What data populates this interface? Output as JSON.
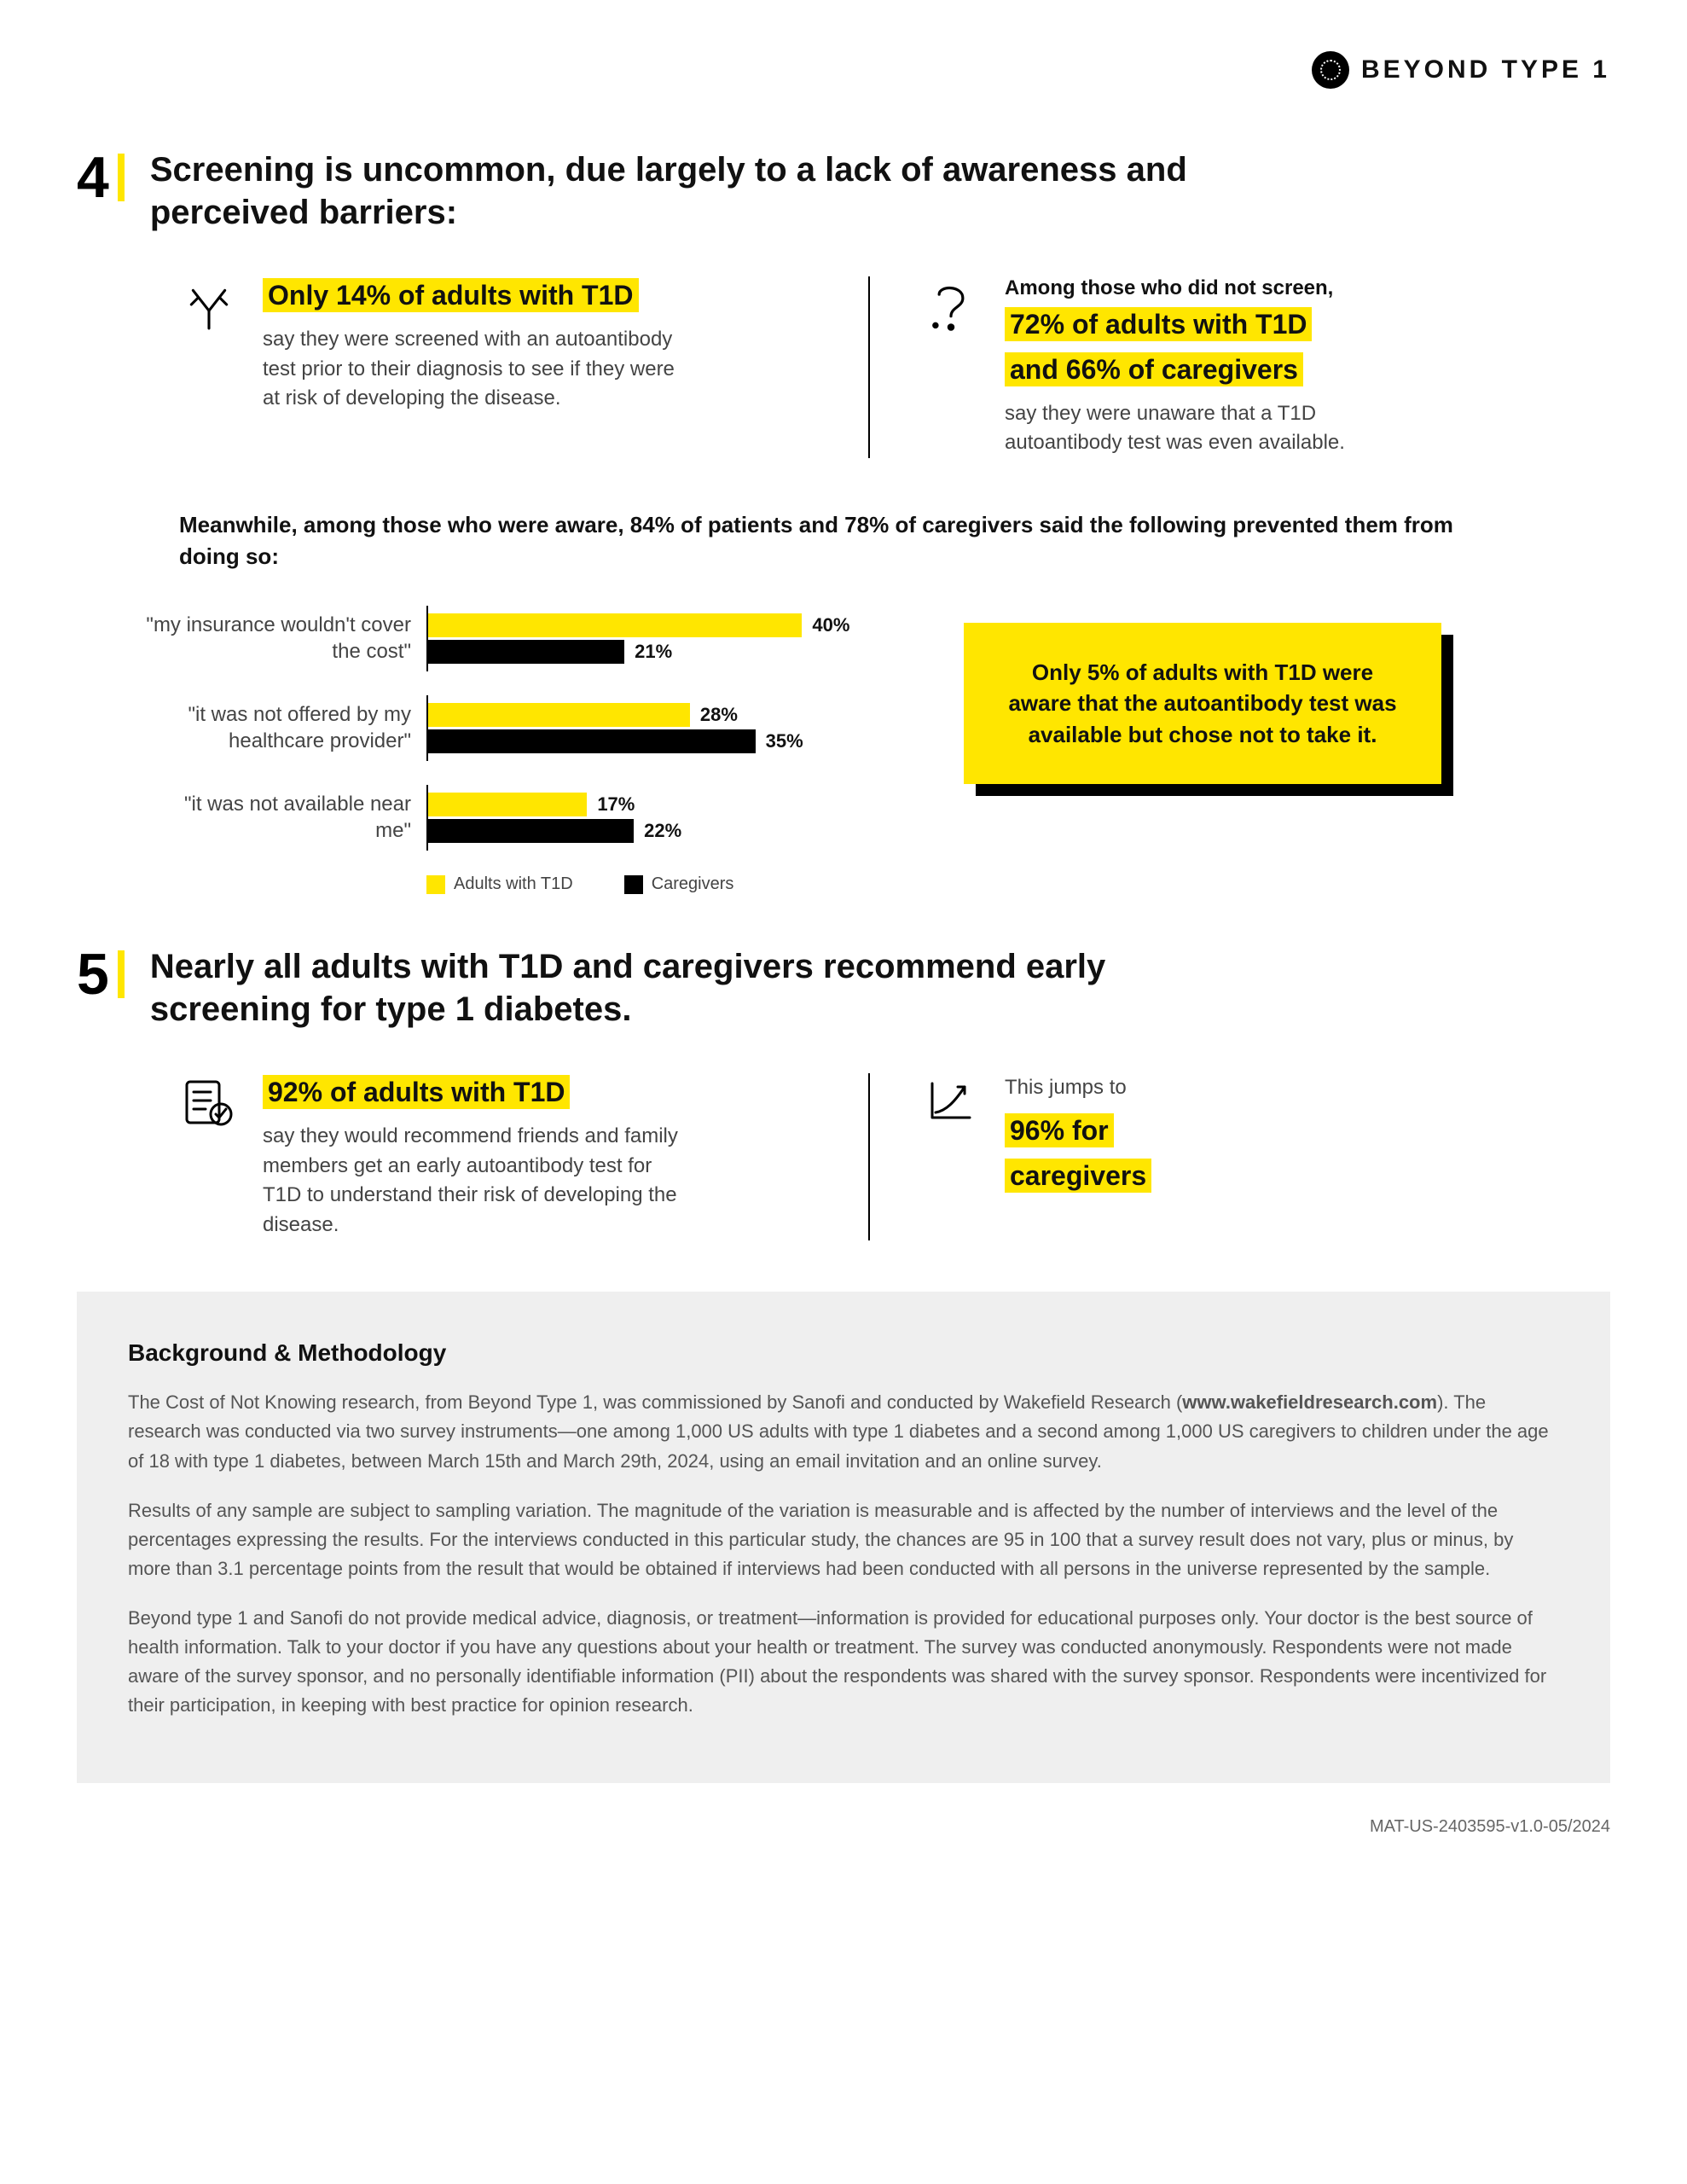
{
  "brand": "BEYOND TYPE 1",
  "section4": {
    "num": "4",
    "title": "Screening is uncommon, due largely to a lack of awareness and perceived barriers:",
    "left": {
      "highlight": "Only 14% of adults with T1D",
      "body": "say they were screened with an autoantibody test prior to their diagnosis to see if they were at risk of developing the disease."
    },
    "right": {
      "lead": "Among those who did not screen,",
      "highlight1": "72% of adults with T1D",
      "highlight2": "and 66% of caregivers",
      "body": "say they were unaware that a T1D autoantibody test was even available."
    },
    "subhead": "Meanwhile, among those who were aware, 84% of patients and 78% of caregivers said the following prevented them from doing so:",
    "chart": {
      "max": 50,
      "items": [
        {
          "label": "\"my insurance wouldn't cover the cost\"",
          "adults": 40,
          "caregivers": 21
        },
        {
          "label": "\"it was not offered by my healthcare provider\"",
          "adults": 28,
          "caregivers": 35
        },
        {
          "label": "\"it was not available near me\"",
          "adults": 17,
          "caregivers": 22
        }
      ],
      "legend": {
        "adults": "Adults with T1D",
        "caregivers": "Caregivers"
      },
      "colors": {
        "adults": "#ffe600",
        "caregivers": "#000000"
      }
    },
    "callout": "Only 5% of adults with T1D were aware that the autoantibody test was available but chose not to take it."
  },
  "section5": {
    "num": "5",
    "title": "Nearly all adults with T1D and caregivers recommend early screening for type 1 diabetes.",
    "left": {
      "highlight": "92% of adults with T1D",
      "body": "say they would recommend friends and family members get an early autoantibody test for T1D to understand their risk of developing the disease."
    },
    "right": {
      "lead": "This jumps to",
      "highlight1": "96% for",
      "highlight2": "caregivers"
    }
  },
  "methodology": {
    "heading": "Background & Methodology",
    "p1a": "The Cost of Not Knowing research, from Beyond Type 1, was commissioned by Sanofi and conducted by Wakefield Research (",
    "p1b": "www.wakefieldresearch.com",
    "p1c": "). The research was conducted via two survey instruments—one among 1,000 US adults with type 1 diabetes and a second among 1,000 US caregivers to children under the age of 18 with type 1 diabetes, between March 15th and March 29th, 2024, using an email invitation and an online survey.",
    "p2": "Results of any sample are subject to sampling variation. The magnitude of the variation is measurable and is affected by the number of interviews and the level of the percentages expressing the results. For the interviews conducted in this particular study, the chances are 95 in 100 that a survey result does not vary, plus or minus, by more than 3.1 percentage points from the result that would be obtained if interviews had been conducted with all persons in the universe represented by the sample.",
    "p3": "Beyond type 1 and Sanofi do not provide medical advice, diagnosis, or treatment—information is provided for educational purposes only. Your doctor is the best source of health information. Talk to your doctor if you have any questions about your health or treatment. The survey was conducted anonymously. Respondents were not made aware of the survey sponsor, and no personally identifiable information (PII) about the respondents was shared with the survey sponsor. Respondents were incentivized for their participation, in keeping with best practice for opinion research."
  },
  "footer_code": "MAT-US-2403595-v1.0-05/2024"
}
